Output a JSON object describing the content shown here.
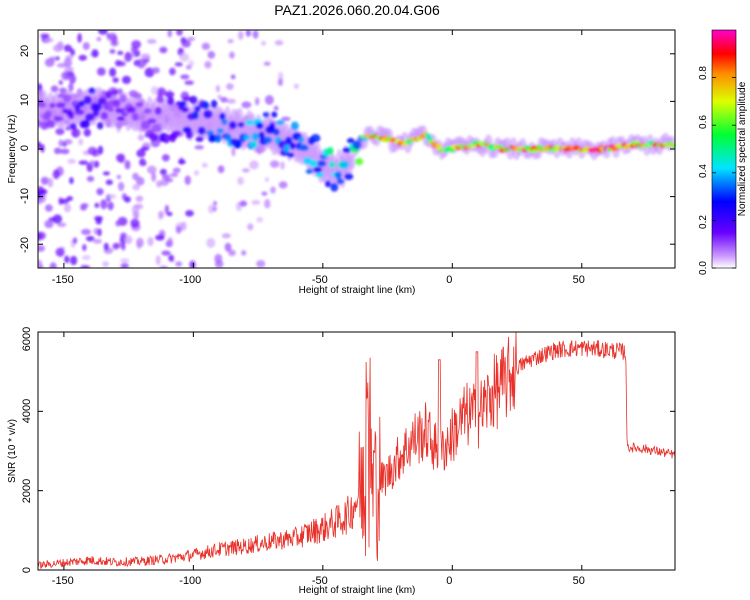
{
  "title": "PAZ1.2026.060.20.04.G06",
  "chart_data": [
    {
      "type": "heatmap",
      "xlabel": "Height of straight line (km)",
      "ylabel": "Frequency (Hz)",
      "xlim": [
        -160,
        86
      ],
      "ylim": [
        -25,
        25
      ],
      "xticks": [
        -150,
        -100,
        -50,
        0,
        50
      ],
      "xtick_labels": [
        "-150",
        "-100",
        "-50",
        "0",
        "50"
      ],
      "yticks": [
        -20,
        -10,
        0,
        10,
        20
      ],
      "ytick_labels": [
        "-20",
        "-10",
        "0",
        "10",
        "20"
      ],
      "colorbar": {
        "label": "Normalized spectral amplitude",
        "range": [
          0,
          1
        ],
        "ticks": [
          0.0,
          0.2,
          0.4,
          0.6,
          0.8
        ],
        "tick_labels": [
          "0.0",
          "0.2",
          "0.4",
          "0.6",
          "0.8"
        ]
      },
      "ridge": {
        "x": [
          -160,
          -140,
          -120,
          -100,
          -90,
          -80,
          -70,
          -60,
          -55,
          -50,
          -45,
          -40,
          -35,
          -30,
          -25,
          -20,
          -15,
          -10,
          -5,
          0,
          10,
          20,
          30,
          40,
          50,
          60,
          70,
          86
        ],
        "freq": [
          8,
          9,
          7,
          6,
          5,
          4,
          3,
          1,
          -1,
          -3,
          -5,
          -3,
          2,
          3,
          2,
          1,
          2,
          3,
          0,
          0,
          1,
          0,
          0,
          0,
          0,
          0,
          1,
          1
        ],
        "amp": [
          0.1,
          0.25,
          0.1,
          0.3,
          0.35,
          0.4,
          0.4,
          0.35,
          0.4,
          0.45,
          0.5,
          0.4,
          0.6,
          0.9,
          0.95,
          0.8,
          0.9,
          0.7,
          0.8,
          0.8,
          0.85,
          0.85,
          0.9,
          0.95,
          0.95,
          0.95,
          0.85,
          0.8
        ]
      }
    },
    {
      "type": "line",
      "xlabel": "Height of straight line (km)",
      "ylabel": "SNR (10 * v/v)",
      "xlim": [
        -160,
        86
      ],
      "ylim": [
        0,
        6000
      ],
      "xticks": [
        -150,
        -100,
        -50,
        0,
        50
      ],
      "xtick_labels": [
        "-150",
        "-100",
        "-50",
        "0",
        "50"
      ],
      "yticks": [
        0,
        2000,
        4000,
        6000
      ],
      "ytick_labels": [
        "0",
        "2000",
        "4000",
        "6000"
      ],
      "color": "#e8312a",
      "series": [
        {
          "name": "SNR",
          "x": [
            -160,
            -140,
            -130,
            -120,
            -110,
            -100,
            -90,
            -80,
            -70,
            -60,
            -55,
            -50,
            -45,
            -40,
            -36,
            -34,
            -32,
            -30,
            -25,
            -20,
            -15,
            -10,
            -5,
            0,
            5,
            10,
            15,
            20,
            25,
            30,
            40,
            50,
            60,
            67,
            67.5,
            75,
            86
          ],
          "y": [
            120,
            250,
            200,
            220,
            280,
            380,
            520,
            600,
            720,
            820,
            950,
            1050,
            1200,
            1400,
            1900,
            2800,
            2600,
            2100,
            2400,
            2900,
            3300,
            3500,
            2900,
            3400,
            3900,
            3900,
            4400,
            4700,
            5100,
            5300,
            5550,
            5600,
            5550,
            5500,
            3100,
            3050,
            2900
          ]
        }
      ]
    }
  ]
}
